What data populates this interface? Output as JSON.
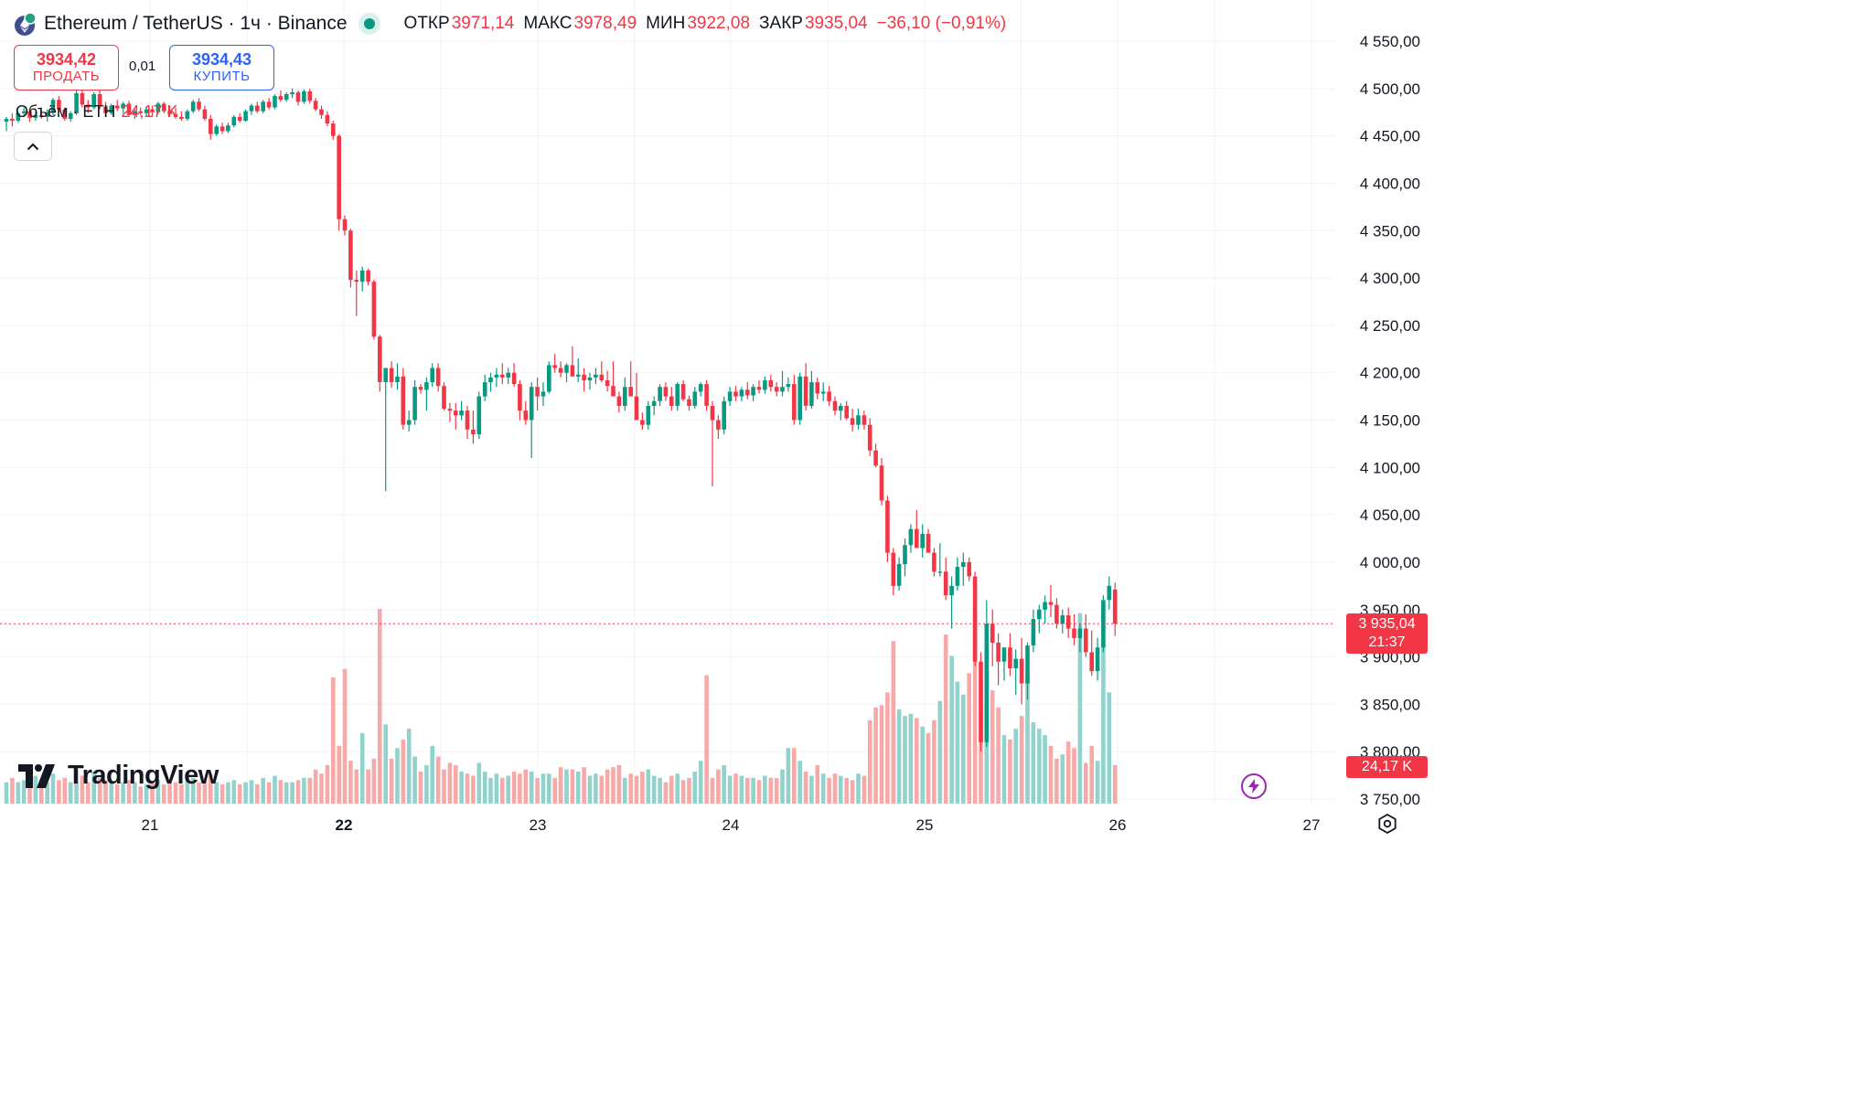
{
  "header": {
    "symbol": "Ethereum / TetherUS · 1ч · Binance",
    "open_label": "ОТКР",
    "open": "3971,14",
    "high_label": "МАКС",
    "high": "3978,49",
    "low_label": "МИН",
    "low": "3922,08",
    "close_label": "ЗАКР",
    "close": "3935,04",
    "change": "−36,10 (−0,91%)"
  },
  "trade": {
    "sell_price": "3934,42",
    "sell_label": "ПРОДАТЬ",
    "spread": "0,01",
    "buy_price": "3934,43",
    "buy_label": "КУПИТЬ"
  },
  "volume_legend": {
    "label": "Объём · ETH",
    "value": "24,17 K"
  },
  "brand": "TradingView",
  "price_tag": {
    "price": "3 935,04",
    "countdown": "21:37"
  },
  "volume_tag": "24,17 K",
  "icons": {
    "symbol": "ethereum-icon",
    "collapse": "chevron-up-icon",
    "flash": "lightning-icon",
    "settings": "gear-icon"
  },
  "colors": {
    "up": "#089981",
    "down": "#F23645",
    "up_volume": "#92D2CC",
    "down_volume": "#F7A9A7",
    "grid": "#F0F3FA"
  },
  "chart_data": {
    "type": "candlestick",
    "interval": "1h",
    "y_axis": {
      "min": 3750,
      "max": 4550,
      "ticks": [
        4550,
        4500,
        4450,
        4400,
        4350,
        4300,
        4250,
        4200,
        4150,
        4100,
        4050,
        4000,
        3950,
        3900,
        3850,
        3800,
        3750
      ],
      "tick_labels": [
        "4 550,00",
        "4 500,00",
        "4 450,00",
        "4 400,00",
        "4 350,00",
        "4 300,00",
        "4 250,00",
        "4 200,00",
        "4 150,00",
        "4 100,00",
        "4 050,00",
        "4 000,00",
        "3 950,00",
        "3 900,00",
        "3 850,00",
        "3 800,00",
        "3 750,00"
      ]
    },
    "x_axis": {
      "ticks": [
        "21",
        "22",
        "23",
        "24",
        "25",
        "26",
        "27"
      ],
      "bold": [
        "22"
      ]
    },
    "current_price": 3935.04,
    "candles": [
      [
        4465,
        4470,
        4455,
        4468,
        1.0
      ],
      [
        4468,
        4474,
        4460,
        4466,
        1.2
      ],
      [
        4466,
        4476,
        4464,
        4474,
        1.0
      ],
      [
        4474,
        4480,
        4470,
        4476,
        1.1
      ],
      [
        4476,
        4479,
        4465,
        4469,
        1.0
      ],
      [
        4469,
        4475,
        4466,
        4472,
        1.3
      ],
      [
        4472,
        4480,
        4468,
        4470,
        0.9
      ],
      [
        4470,
        4478,
        4465,
        4475,
        1.0
      ],
      [
        4475,
        4490,
        4472,
        4488,
        1.4
      ],
      [
        4488,
        4492,
        4475,
        4478,
        1.1
      ],
      [
        4478,
        4480,
        4466,
        4468,
        1.2
      ],
      [
        4468,
        4476,
        4465,
        4474,
        1.0
      ],
      [
        4474,
        4498,
        4472,
        4495,
        1.6
      ],
      [
        4495,
        4500,
        4480,
        4483,
        1.3
      ],
      [
        4483,
        4488,
        4474,
        4480,
        1.0
      ],
      [
        4480,
        4496,
        4478,
        4494,
        1.5
      ],
      [
        4494,
        4498,
        4478,
        4481,
        1.2
      ],
      [
        4481,
        4486,
        4470,
        4474,
        1.1
      ],
      [
        4474,
        4484,
        4472,
        4482,
        1.0
      ],
      [
        4482,
        4488,
        4476,
        4479,
        0.9
      ],
      [
        4479,
        4486,
        4474,
        4484,
        1.0
      ],
      [
        4484,
        4487,
        4470,
        4472,
        1.1
      ],
      [
        4472,
        4478,
        4468,
        4476,
        1.0
      ],
      [
        4476,
        4480,
        4472,
        4474,
        0.8
      ],
      [
        4474,
        4480,
        4470,
        4478,
        0.9
      ],
      [
        4478,
        4482,
        4470,
        4475,
        1.0
      ],
      [
        4475,
        4486,
        4473,
        4484,
        1.1
      ],
      [
        4484,
        4486,
        4474,
        4476,
        0.9
      ],
      [
        4476,
        4482,
        4470,
        4473,
        1.0
      ],
      [
        4473,
        4480,
        4468,
        4470,
        1.0
      ],
      [
        4470,
        4476,
        4466,
        4468,
        0.9
      ],
      [
        4468,
        4478,
        4466,
        4476,
        1.1
      ],
      [
        4476,
        4488,
        4474,
        4486,
        1.2
      ],
      [
        4486,
        4490,
        4476,
        4478,
        1.0
      ],
      [
        4478,
        4482,
        4466,
        4468,
        1.1
      ],
      [
        4468,
        4472,
        4446,
        4452,
        1.4
      ],
      [
        4452,
        4462,
        4450,
        4460,
        1.0
      ],
      [
        4460,
        4464,
        4452,
        4455,
        0.9
      ],
      [
        4455,
        4464,
        4453,
        4461,
        1.0
      ],
      [
        4461,
        4472,
        4459,
        4470,
        1.1
      ],
      [
        4470,
        4474,
        4464,
        4466,
        0.9
      ],
      [
        4466,
        4478,
        4465,
        4476,
        1.0
      ],
      [
        4476,
        4484,
        4472,
        4482,
        1.1
      ],
      [
        4482,
        4486,
        4474,
        4476,
        0.9
      ],
      [
        4476,
        4488,
        4474,
        4486,
        1.2
      ],
      [
        4486,
        4490,
        4478,
        4480,
        1.0
      ],
      [
        4480,
        4494,
        4478,
        4492,
        1.3
      ],
      [
        4492,
        4498,
        4486,
        4488,
        1.1
      ],
      [
        4488,
        4496,
        4486,
        4494,
        1.0
      ],
      [
        4494,
        4500,
        4490,
        4496,
        1.0
      ],
      [
        4496,
        4498,
        4482,
        4486,
        1.1
      ],
      [
        4486,
        4499,
        4484,
        4497,
        1.2
      ],
      [
        4497,
        4500,
        4484,
        4487,
        1.2
      ],
      [
        4487,
        4490,
        4476,
        4478,
        1.6
      ],
      [
        4478,
        4482,
        4468,
        4472,
        1.4
      ],
      [
        4472,
        4476,
        4460,
        4463,
        1.8
      ],
      [
        4463,
        4466,
        4446,
        4450,
        5.9
      ],
      [
        4450,
        4452,
        4350,
        4362,
        2.7
      ],
      [
        4362,
        4366,
        4345,
        4350,
        6.3
      ],
      [
        4350,
        4352,
        4290,
        4298,
        2.0
      ],
      [
        4298,
        4308,
        4260,
        4296,
        1.6
      ],
      [
        4296,
        4312,
        4286,
        4308,
        3.3
      ],
      [
        4308,
        4310,
        4292,
        4296,
        1.6
      ],
      [
        4296,
        4298,
        4235,
        4238,
        2.1
      ],
      [
        4238,
        4240,
        4180,
        4190,
        9.1
      ],
      [
        4190,
        4197,
        4075,
        4205,
        3.7
      ],
      [
        4205,
        4212,
        4184,
        4190,
        2.1
      ],
      [
        4190,
        4210,
        4182,
        4196,
        2.6
      ],
      [
        4196,
        4205,
        4140,
        4145,
        3.0
      ],
      [
        4145,
        4160,
        4138,
        4150,
        3.5
      ],
      [
        4150,
        4192,
        4145,
        4185,
        2.2
      ],
      [
        4185,
        4188,
        4178,
        4182,
        1.5
      ],
      [
        4182,
        4195,
        4160,
        4190,
        1.8
      ],
      [
        4190,
        4210,
        4185,
        4205,
        2.7
      ],
      [
        4205,
        4210,
        4180,
        4186,
        2.2
      ],
      [
        4186,
        4190,
        4160,
        4162,
        1.6
      ],
      [
        4162,
        4168,
        4148,
        4160,
        1.9
      ],
      [
        4160,
        4168,
        4140,
        4155,
        1.8
      ],
      [
        4155,
        4170,
        4150,
        4160,
        1.5
      ],
      [
        4160,
        4165,
        4130,
        4140,
        1.4
      ],
      [
        4140,
        4160,
        4125,
        4135,
        1.3
      ],
      [
        4135,
        4180,
        4130,
        4175,
        1.9
      ],
      [
        4175,
        4198,
        4170,
        4190,
        1.5
      ],
      [
        4190,
        4200,
        4180,
        4195,
        1.2
      ],
      [
        4195,
        4205,
        4185,
        4198,
        1.4
      ],
      [
        4198,
        4210,
        4188,
        4195,
        1.2
      ],
      [
        4195,
        4205,
        4188,
        4200,
        1.3
      ],
      [
        4200,
        4210,
        4185,
        4188,
        1.5
      ],
      [
        4188,
        4192,
        4150,
        4160,
        1.4
      ],
      [
        4160,
        4170,
        4145,
        4150,
        1.6
      ],
      [
        4150,
        4190,
        4110,
        4185,
        1.5
      ],
      [
        4185,
        4195,
        4160,
        4175,
        1.2
      ],
      [
        4175,
        4190,
        4165,
        4180,
        1.4
      ],
      [
        4180,
        4212,
        4178,
        4208,
        1.4
      ],
      [
        4208,
        4220,
        4200,
        4205,
        1.2
      ],
      [
        4205,
        4212,
        4195,
        4200,
        1.7
      ],
      [
        4200,
        4210,
        4190,
        4208,
        1.6
      ],
      [
        4208,
        4228,
        4198,
        4196,
        1.6
      ],
      [
        4196,
        4215,
        4190,
        4198,
        1.5
      ],
      [
        4198,
        4205,
        4180,
        4192,
        1.7
      ],
      [
        4192,
        4200,
        4182,
        4195,
        1.3
      ],
      [
        4195,
        4205,
        4188,
        4198,
        1.4
      ],
      [
        4198,
        4212,
        4190,
        4192,
        1.3
      ],
      [
        4192,
        4202,
        4180,
        4186,
        1.6
      ],
      [
        4186,
        4212,
        4178,
        4175,
        1.7
      ],
      [
        4175,
        4180,
        4158,
        4165,
        1.8
      ],
      [
        4165,
        4195,
        4160,
        4185,
        1.2
      ],
      [
        4185,
        4212,
        4180,
        4175,
        1.4
      ],
      [
        4175,
        4200,
        4150,
        4150,
        1.3
      ],
      [
        4150,
        4158,
        4140,
        4145,
        1.5
      ],
      [
        4145,
        4170,
        4140,
        4165,
        1.6
      ],
      [
        4165,
        4175,
        4155,
        4170,
        1.3
      ],
      [
        4170,
        4188,
        4165,
        4185,
        1.2
      ],
      [
        4185,
        4190,
        4170,
        4175,
        1.0
      ],
      [
        4175,
        4185,
        4160,
        4165,
        1.3
      ],
      [
        4165,
        4190,
        4160,
        4188,
        1.4
      ],
      [
        4188,
        4192,
        4170,
        4172,
        1.1
      ],
      [
        4172,
        4176,
        4160,
        4165,
        1.2
      ],
      [
        4165,
        4185,
        4162,
        4180,
        1.5
      ],
      [
        4180,
        4190,
        4175,
        4188,
        2.0
      ],
      [
        4188,
        4192,
        4160,
        4165,
        6.0
      ],
      [
        4165,
        4170,
        4080,
        4150,
        1.2
      ],
      [
        4150,
        4155,
        4130,
        4140,
        1.6
      ],
      [
        4140,
        4175,
        4135,
        4170,
        1.8
      ],
      [
        4170,
        4185,
        4165,
        4180,
        1.3
      ],
      [
        4180,
        4186,
        4170,
        4175,
        1.4
      ],
      [
        4175,
        4185,
        4170,
        4182,
        1.3
      ],
      [
        4182,
        4190,
        4172,
        4176,
        1.2
      ],
      [
        4176,
        4188,
        4170,
        4185,
        1.2
      ],
      [
        4185,
        4192,
        4178,
        4182,
        1.1
      ],
      [
        4182,
        4196,
        4178,
        4192,
        1.3
      ],
      [
        4192,
        4198,
        4180,
        4185,
        1.2
      ],
      [
        4185,
        4190,
        4175,
        4180,
        1.2
      ],
      [
        4180,
        4202,
        4175,
        4185,
        1.6
      ],
      [
        4185,
        4195,
        4180,
        4188,
        2.6
      ],
      [
        4188,
        4198,
        4145,
        4150,
        2.6
      ],
      [
        4150,
        4200,
        4145,
        4196,
        2.0
      ],
      [
        4196,
        4210,
        4160,
        4165,
        1.5
      ],
      [
        4165,
        4202,
        4162,
        4190,
        1.3
      ],
      [
        4190,
        4195,
        4172,
        4178,
        1.8
      ],
      [
        4178,
        4190,
        4170,
        4180,
        1.4
      ],
      [
        4180,
        4186,
        4165,
        4170,
        1.2
      ],
      [
        4170,
        4175,
        4155,
        4160,
        1.4
      ],
      [
        4160,
        4168,
        4150,
        4165,
        1.3
      ],
      [
        4165,
        4170,
        4150,
        4152,
        1.2
      ],
      [
        4152,
        4162,
        4138,
        4145,
        1.1
      ],
      [
        4145,
        4162,
        4140,
        4155,
        1.4
      ],
      [
        4155,
        4160,
        4140,
        4145,
        1.3
      ],
      [
        4145,
        4152,
        4112,
        4118,
        3.9
      ],
      [
        4118,
        4125,
        4100,
        4102,
        4.5
      ],
      [
        4102,
        4110,
        4060,
        4065,
        4.6
      ],
      [
        4065,
        4070,
        4000,
        4010,
        5.2
      ],
      [
        4010,
        4015,
        3965,
        3975,
        7.6
      ],
      [
        3975,
        4005,
        3970,
        3998,
        4.4
      ],
      [
        3998,
        4025,
        3985,
        4018,
        4.1
      ],
      [
        4018,
        4040,
        4010,
        4035,
        4.2
      ],
      [
        4035,
        4055,
        4020,
        4015,
        4.0
      ],
      [
        4015,
        4040,
        4005,
        4030,
        3.6
      ],
      [
        4030,
        4035,
        4010,
        4010,
        3.3
      ],
      [
        4010,
        4015,
        3985,
        3990,
        3.9
      ],
      [
        3990,
        4020,
        3985,
        3990,
        4.8
      ],
      [
        3990,
        4005,
        3960,
        3965,
        7.9
      ],
      [
        3965,
        3985,
        3930,
        3975,
        6.9
      ],
      [
        3975,
        4005,
        3970,
        3995,
        5.7
      ],
      [
        3995,
        4010,
        3975,
        4000,
        5.1
      ],
      [
        4000,
        4005,
        3980,
        3985,
        6.1
      ],
      [
        3985,
        3990,
        3890,
        3895,
        8.8
      ],
      [
        3895,
        3905,
        3800,
        3810,
        5.8
      ],
      [
        3810,
        3960,
        3805,
        3935,
        6.7
      ],
      [
        3935,
        3950,
        3890,
        3915,
        5.3
      ],
      [
        3915,
        3925,
        3870,
        3895,
        4.5
      ],
      [
        3895,
        3910,
        3875,
        3910,
        3.2
      ],
      [
        3910,
        3925,
        3880,
        3888,
        3.0
      ],
      [
        3888,
        3908,
        3860,
        3898,
        3.5
      ],
      [
        3898,
        3920,
        3850,
        3872,
        4.1
      ],
      [
        3872,
        3915,
        3855,
        3912,
        5.9
      ],
      [
        3912,
        3950,
        3905,
        3940,
        3.8
      ],
      [
        3940,
        3955,
        3925,
        3950,
        3.5
      ],
      [
        3950,
        3965,
        3935,
        3958,
        3.2
      ],
      [
        3958,
        3976,
        3942,
        3955,
        2.7
      ],
      [
        3955,
        3962,
        3930,
        3935,
        2.1
      ],
      [
        3935,
        3950,
        3925,
        3944,
        2.3
      ],
      [
        3944,
        3952,
        3920,
        3930,
        2.9
      ],
      [
        3930,
        3945,
        3912,
        3920,
        2.6
      ],
      [
        3920,
        3935,
        3905,
        3930,
        8.9
      ],
      [
        3930,
        3945,
        3900,
        3905,
        1.9
      ],
      [
        3905,
        3928,
        3880,
        3885,
        2.7
      ],
      [
        3885,
        3920,
        3875,
        3910,
        2.0
      ],
      [
        3910,
        3965,
        3905,
        3960,
        7.4
      ],
      [
        3960,
        3985,
        3950,
        3975,
        5.2
      ],
      [
        3971.14,
        3978.49,
        3922.08,
        3935.04,
        1.8
      ]
    ]
  }
}
